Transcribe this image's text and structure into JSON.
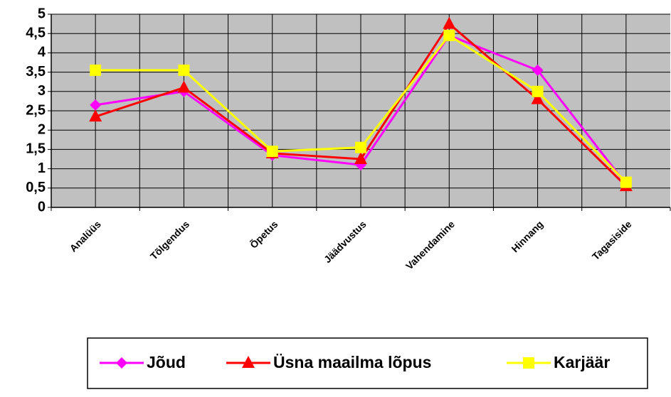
{
  "chart_data": {
    "type": "line",
    "categories": [
      "Analüüs",
      "Tõlgendus",
      "Õpetus",
      "Jäädvustus",
      "Vahendamine",
      "Hinnang",
      "Tagasiside"
    ],
    "series": [
      {
        "name": "Jõud",
        "color": "#ff00ff",
        "marker": "diamond",
        "values": [
          2.65,
          3.0,
          1.35,
          1.1,
          4.45,
          3.55,
          0.6
        ]
      },
      {
        "name": "Üsna maailma lõpus",
        "color": "#ff0000",
        "marker": "triangle",
        "values": [
          2.35,
          3.1,
          1.4,
          1.25,
          4.75,
          2.8,
          0.55
        ]
      },
      {
        "name": "Karjäär",
        "color": "#ffff00",
        "marker": "square",
        "values": [
          3.55,
          3.55,
          1.45,
          1.55,
          4.45,
          3.0,
          0.65
        ]
      }
    ],
    "ylim": [
      0,
      5
    ],
    "yticks": [
      0,
      {
        "value": 0.5,
        "label": "0,5"
      },
      1,
      {
        "value": 1.5,
        "label": "1,5"
      },
      2,
      {
        "value": 2.5,
        "label": "2,5"
      },
      3,
      {
        "value": 3.5,
        "label": "3,5"
      },
      4,
      {
        "value": 4.5,
        "label": "4,5"
      },
      5
    ],
    "grid": true,
    "legend": "bottom"
  }
}
